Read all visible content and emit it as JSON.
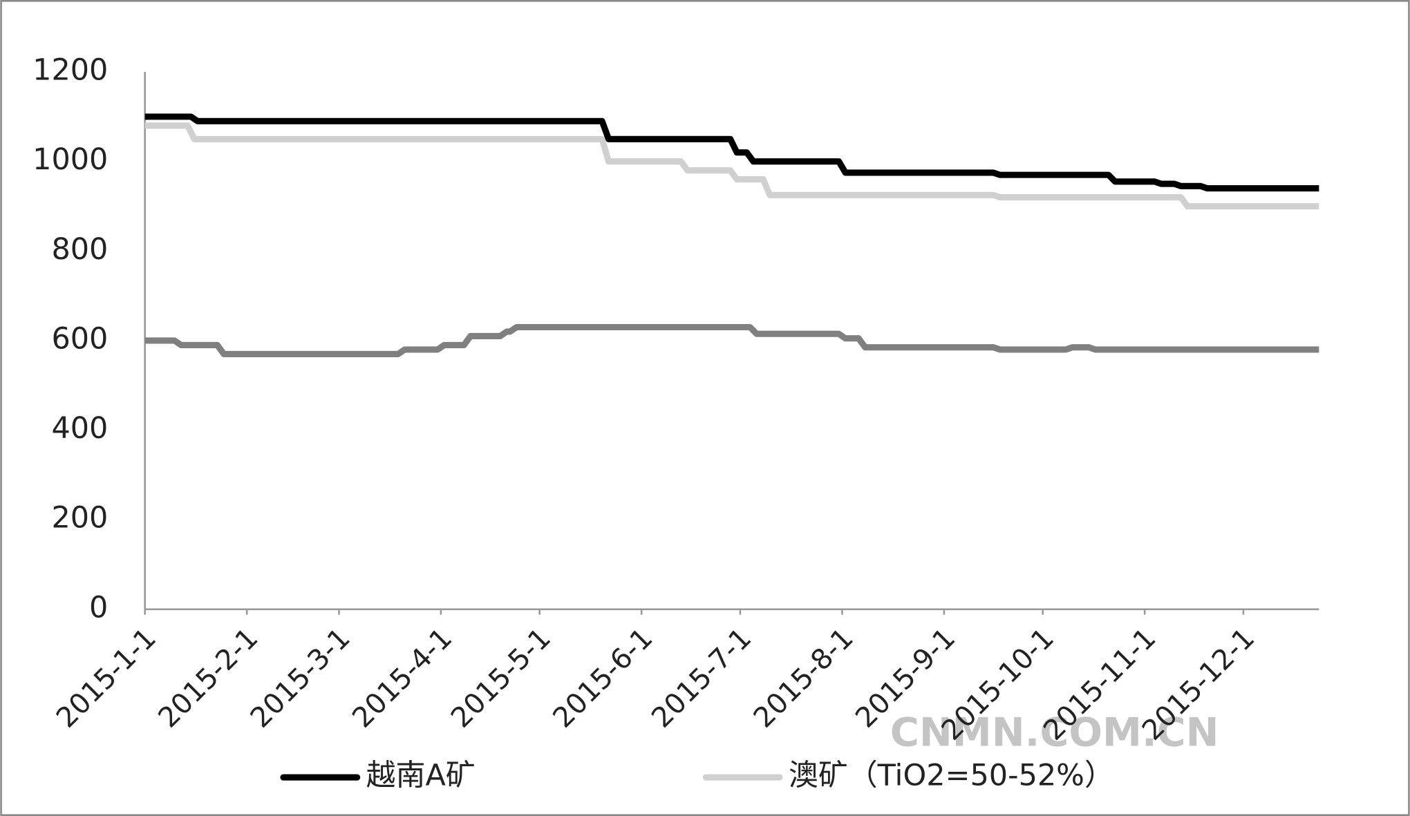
{
  "chart_data": {
    "type": "line",
    "xticks": [
      "2015-1-1",
      "2015-2-1",
      "2015-3-1",
      "2015-4-1",
      "2015-5-1",
      "2015-6-1",
      "2015-7-1",
      "2015-8-1",
      "2015-9-1",
      "2015-10-1",
      "2015-11-1",
      "2015-12-1"
    ],
    "xlim": [
      "2015-1-1",
      "2015-12-24"
    ],
    "ylim": [
      0,
      1200
    ],
    "yticks": [
      0,
      200,
      400,
      600,
      800,
      1000,
      1200
    ],
    "watermark": "CNMN.COM.CN",
    "series": [
      {
        "name": "越南A矿",
        "color": "#000000",
        "x": [
          "2015-1-1",
          "2015-1-15",
          "2015-1-17",
          "2015-5-20",
          "2015-5-22",
          "2015-6-28",
          "2015-6-30",
          "2015-7-3",
          "2015-7-5",
          "2015-7-31",
          "2015-8-2",
          "2015-9-16",
          "2015-9-18",
          "2015-10-21",
          "2015-10-23",
          "2015-11-4",
          "2015-11-6",
          "2015-11-10",
          "2015-11-12",
          "2015-11-18",
          "2015-11-20",
          "2015-12-24"
        ],
        "values": [
          1100,
          1100,
          1090,
          1090,
          1050,
          1050,
          1020,
          1020,
          1000,
          1000,
          975,
          975,
          970,
          970,
          955,
          955,
          950,
          950,
          945,
          945,
          940,
          940
        ]
      },
      {
        "name": "澳矿（TiO2=50-52%）",
        "color": "#d0d0d0",
        "x": [
          "2015-1-1",
          "2015-1-14",
          "2015-1-16",
          "2015-5-20",
          "2015-5-22",
          "2015-6-13",
          "2015-6-15",
          "2015-6-28",
          "2015-6-30",
          "2015-7-8",
          "2015-7-10",
          "2015-9-16",
          "2015-9-18",
          "2015-11-12",
          "2015-11-14",
          "2015-12-24"
        ],
        "values": [
          1080,
          1080,
          1050,
          1050,
          1000,
          1000,
          980,
          980,
          960,
          960,
          925,
          925,
          920,
          920,
          900,
          900
        ]
      },
      {
        "color": "#808080",
        "x": [
          "2015-1-1",
          "2015-1-10",
          "2015-1-12",
          "2015-1-23",
          "2015-1-25",
          "2015-3-19",
          "2015-3-21",
          "2015-3-31",
          "2015-4-2",
          "2015-4-8",
          "2015-4-10",
          "2015-4-19",
          "2015-4-21",
          "2015-4-22",
          "2015-4-24",
          "2015-7-4",
          "2015-7-6",
          "2015-7-31",
          "2015-8-2",
          "2015-8-6",
          "2015-8-8",
          "2015-9-16",
          "2015-9-18",
          "2015-10-8",
          "2015-10-10",
          "2015-10-15",
          "2015-10-17",
          "2015-12-24"
        ],
        "values": [
          600,
          600,
          590,
          590,
          570,
          570,
          580,
          580,
          590,
          590,
          610,
          610,
          620,
          620,
          630,
          630,
          615,
          615,
          605,
          605,
          585,
          585,
          580,
          580,
          585,
          585,
          580,
          580
        ]
      }
    ]
  }
}
